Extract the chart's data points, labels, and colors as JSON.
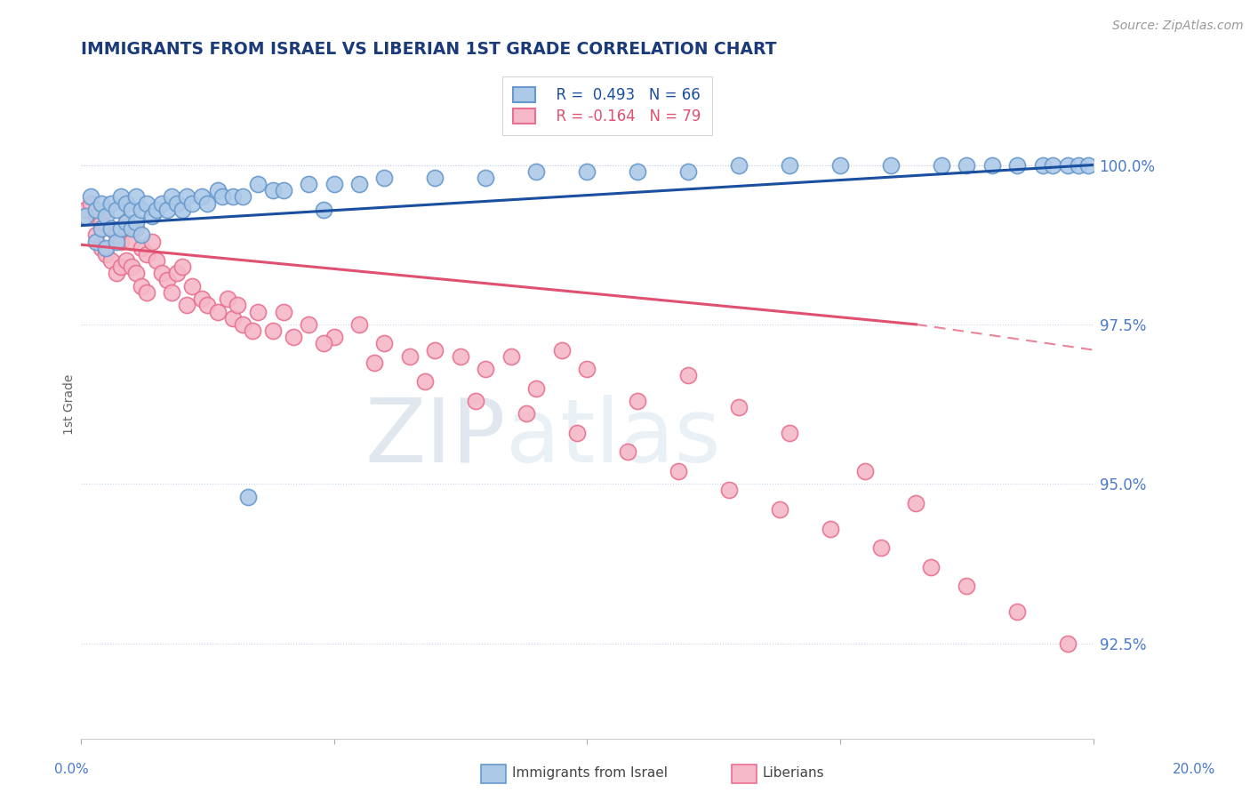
{
  "title": "IMMIGRANTS FROM ISRAEL VS LIBERIAN 1ST GRADE CORRELATION CHART",
  "source": "Source: ZipAtlas.com",
  "ylabel": "1st Grade",
  "xlim": [
    0.0,
    20.0
  ],
  "ylim": [
    91.0,
    101.5
  ],
  "yticks": [
    92.5,
    95.0,
    97.5,
    100.0
  ],
  "ytick_labels": [
    "92.5%",
    "95.0%",
    "97.5%",
    "100.0%"
  ],
  "israel_R": 0.493,
  "israel_N": 66,
  "liberian_R": -0.164,
  "liberian_N": 79,
  "israel_color": "#adc9e8",
  "liberian_color": "#f5b8c8",
  "israel_edge_color": "#6699cc",
  "liberian_edge_color": "#e87090",
  "israel_line_color": "#1a4fa0",
  "liberian_line_color": "#e05070",
  "background_color": "#ffffff",
  "grid_color": "#c8d4e8",
  "title_color": "#1a3a7a",
  "axis_color": "#4a7acc",
  "watermark_zip": "ZIP",
  "watermark_atlas": "atlas",
  "israel_x": [
    0.1,
    0.2,
    0.3,
    0.3,
    0.4,
    0.4,
    0.5,
    0.5,
    0.6,
    0.6,
    0.7,
    0.7,
    0.8,
    0.8,
    0.9,
    0.9,
    1.0,
    1.0,
    1.1,
    1.1,
    1.2,
    1.2,
    1.3,
    1.4,
    1.5,
    1.6,
    1.7,
    1.8,
    1.9,
    2.0,
    2.1,
    2.2,
    2.4,
    2.5,
    2.7,
    2.8,
    3.0,
    3.2,
    3.5,
    3.8,
    4.0,
    4.5,
    5.0,
    5.5,
    6.0,
    7.0,
    8.0,
    9.0,
    10.0,
    11.0,
    12.0,
    13.0,
    14.0,
    15.0,
    16.0,
    17.0,
    17.5,
    18.0,
    18.5,
    19.0,
    19.2,
    19.5,
    19.7,
    19.9,
    3.3,
    4.8
  ],
  "israel_y": [
    99.2,
    99.5,
    99.3,
    98.8,
    99.4,
    99.0,
    99.2,
    98.7,
    99.4,
    99.0,
    99.3,
    98.8,
    99.5,
    99.0,
    99.4,
    99.1,
    99.3,
    99.0,
    99.5,
    99.1,
    99.3,
    98.9,
    99.4,
    99.2,
    99.3,
    99.4,
    99.3,
    99.5,
    99.4,
    99.3,
    99.5,
    99.4,
    99.5,
    99.4,
    99.6,
    99.5,
    99.5,
    99.5,
    99.7,
    99.6,
    99.6,
    99.7,
    99.7,
    99.7,
    99.8,
    99.8,
    99.8,
    99.9,
    99.9,
    99.9,
    99.9,
    100.0,
    100.0,
    100.0,
    100.0,
    100.0,
    100.0,
    100.0,
    100.0,
    100.0,
    100.0,
    100.0,
    100.0,
    100.0,
    94.8,
    99.3
  ],
  "liberian_x": [
    0.1,
    0.2,
    0.3,
    0.3,
    0.4,
    0.4,
    0.5,
    0.5,
    0.6,
    0.6,
    0.7,
    0.7,
    0.8,
    0.8,
    0.9,
    0.9,
    1.0,
    1.0,
    1.1,
    1.1,
    1.2,
    1.2,
    1.3,
    1.3,
    1.4,
    1.5,
    1.6,
    1.7,
    1.8,
    1.9,
    2.0,
    2.1,
    2.2,
    2.4,
    2.5,
    2.7,
    2.9,
    3.0,
    3.1,
    3.2,
    3.4,
    3.5,
    3.8,
    4.0,
    4.2,
    4.5,
    5.0,
    5.5,
    6.0,
    6.5,
    7.0,
    7.5,
    8.0,
    8.5,
    9.0,
    9.5,
    10.0,
    11.0,
    12.0,
    13.0,
    14.0,
    15.5,
    16.5,
    4.8,
    5.8,
    6.8,
    7.8,
    8.8,
    9.8,
    10.8,
    11.8,
    12.8,
    13.8,
    14.8,
    15.8,
    16.8,
    17.5,
    18.5,
    19.5
  ],
  "liberian_y": [
    99.3,
    99.4,
    99.2,
    98.9,
    99.1,
    98.7,
    99.3,
    98.6,
    99.0,
    98.5,
    98.9,
    98.3,
    98.8,
    98.4,
    99.1,
    98.5,
    98.8,
    98.4,
    99.0,
    98.3,
    98.7,
    98.1,
    98.6,
    98.0,
    98.8,
    98.5,
    98.3,
    98.2,
    98.0,
    98.3,
    98.4,
    97.8,
    98.1,
    97.9,
    97.8,
    97.7,
    97.9,
    97.6,
    97.8,
    97.5,
    97.4,
    97.7,
    97.4,
    97.7,
    97.3,
    97.5,
    97.3,
    97.5,
    97.2,
    97.0,
    97.1,
    97.0,
    96.8,
    97.0,
    96.5,
    97.1,
    96.8,
    96.3,
    96.7,
    96.2,
    95.8,
    95.2,
    94.7,
    97.2,
    96.9,
    96.6,
    96.3,
    96.1,
    95.8,
    95.5,
    95.2,
    94.9,
    94.6,
    94.3,
    94.0,
    93.7,
    93.4,
    93.0,
    92.5
  ],
  "liberian_solid_max_x": 16.5,
  "legend_R_israel": "R =  0.493",
  "legend_N_israel": "N = 66",
  "legend_R_liberian": "R = -0.164",
  "legend_N_liberian": "N = 79"
}
